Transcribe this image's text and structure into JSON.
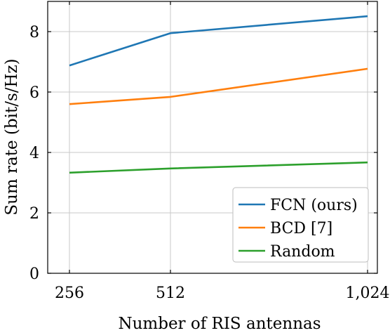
{
  "chart_data": {
    "type": "line",
    "xlabel": "Number of RIS antennas",
    "ylabel": "Sum rate (bit/s/Hz)",
    "x": [
      256,
      512,
      1024
    ],
    "x_tick_labels": [
      "256",
      "512",
      "1,024"
    ],
    "xlim": [
      256,
      1024
    ],
    "y_ticks": [
      0,
      2,
      4,
      6,
      8
    ],
    "y_tick_labels": [
      "0",
      "2",
      "4",
      "6",
      "8"
    ],
    "ylim": [
      0,
      9
    ],
    "grid": true,
    "legend_position": "bottom-right",
    "series": [
      {
        "name": "FCN (ours)",
        "color": "#1f77b4",
        "values": [
          6.88,
          7.95,
          8.51
        ]
      },
      {
        "name": "BCD [7]",
        "color": "#ff7f0e",
        "values": [
          5.6,
          5.84,
          6.77
        ]
      },
      {
        "name": "Random",
        "color": "#2ca02c",
        "values": [
          3.33,
          3.47,
          3.67
        ]
      }
    ]
  }
}
